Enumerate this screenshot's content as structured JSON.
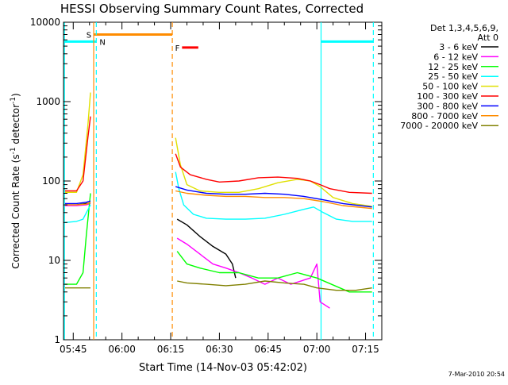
{
  "chart_data": {
    "type": "line",
    "title": "HESSI Observing Summary Count Rates, Corrected",
    "xlabel": "Start Time (14-Nov-03 05:42:02)",
    "ylabel_main": "Corrected Count Rate (s",
    "ylabel_sup1": "-1",
    "ylabel_mid": " detector",
    "ylabel_sup2": "-1",
    "ylabel_end": ")",
    "ylim": [
      1,
      10000
    ],
    "yscale": "log",
    "xlim_minutes": [
      342,
      440
    ],
    "x_ticks": [
      "05:45",
      "06:00",
      "06:15",
      "06:30",
      "06:45",
      "07:00",
      "07:15"
    ],
    "x_tick_minutes": [
      345,
      360,
      375,
      390,
      405,
      420,
      435
    ],
    "y_ticks": [
      "1",
      "10",
      "100",
      "1000",
      "10000"
    ],
    "y_tick_values": [
      1,
      10,
      100,
      1000,
      10000
    ],
    "legend_header": [
      "Det 1,3,4,5,6,9,",
      "Att 0"
    ],
    "legend_position": "right",
    "date_stamp": "7-Mar-2010 20:54",
    "colors": {
      "3-6": "#000000",
      "6-12": "#ff00ff",
      "12-25": "#00ff00",
      "25-50": "#00ffff",
      "50-100": "#e0e000",
      "100-300": "#ff0000",
      "300-800": "#0000ff",
      "800-7000": "#ff8c00",
      "7000-20000": "#808000",
      "night": "#00ffff",
      "saa": "#ff8c00",
      "flare": "#ff0000",
      "axis": "#000000"
    },
    "series": [
      {
        "key": "3-6",
        "name": "3 - 6 keV",
        "segments": [
          [
            [
              342.5,
              50
            ],
            [
              346,
              50
            ],
            [
              349,
              52
            ],
            [
              350.3,
              53
            ]
          ],
          [
            [
              377,
              33
            ],
            [
              380,
              28
            ],
            [
              384,
              20
            ],
            [
              388,
              15
            ],
            [
              392,
              12
            ],
            [
              394,
              9
            ],
            [
              395,
              6
            ]
          ]
        ]
      },
      {
        "key": "6-12",
        "name": "6 - 12 keV",
        "segments": [
          [
            [
              342.5,
              49
            ],
            [
              346,
              49
            ],
            [
              349,
              50
            ],
            [
              350.3,
              52
            ]
          ],
          [
            [
              377,
              19
            ],
            [
              380,
              16
            ],
            [
              384,
              12
            ],
            [
              388,
              9
            ],
            [
              392,
              8
            ],
            [
              396,
              7
            ],
            [
              400,
              6
            ],
            [
              404,
              5
            ],
            [
              408,
              6
            ],
            [
              412,
              5
            ],
            [
              418,
              6
            ],
            [
              420,
              9
            ],
            [
              421,
              3
            ],
            [
              424,
              2.5
            ]
          ]
        ]
      },
      {
        "key": "12-25",
        "name": "12 - 25 keV",
        "segments": [
          [
            [
              342.5,
              5
            ],
            [
              346,
              5
            ],
            [
              348,
              7
            ],
            [
              349,
              20
            ],
            [
              350.3,
              70
            ]
          ],
          [
            [
              377,
              13
            ],
            [
              380,
              9
            ],
            [
              384,
              8
            ],
            [
              390,
              7
            ],
            [
              396,
              7
            ],
            [
              402,
              6
            ],
            [
              408,
              6
            ],
            [
              414,
              7
            ],
            [
              420,
              6
            ],
            [
              430,
              4
            ],
            [
              437,
              4
            ]
          ]
        ]
      },
      {
        "key": "25-50",
        "name": "25 - 50 keV",
        "segments": [
          [
            [
              342.5,
              30
            ],
            [
              346,
              31
            ],
            [
              348,
              33
            ],
            [
              350.3,
              50
            ]
          ],
          [
            [
              376.5,
              130
            ],
            [
              377.5,
              80
            ],
            [
              379,
              50
            ],
            [
              382,
              38
            ],
            [
              386,
              34
            ],
            [
              392,
              33
            ],
            [
              398,
              33
            ],
            [
              404,
              34
            ],
            [
              410,
              38
            ],
            [
              416,
              44
            ],
            [
              419,
              47
            ],
            [
              422,
              40
            ],
            [
              426,
              33
            ],
            [
              431,
              31
            ],
            [
              437,
              31
            ]
          ]
        ]
      },
      {
        "key": "50-100",
        "name": "50 - 100 keV",
        "segments": [
          [
            [
              342.5,
              72
            ],
            [
              346,
              72
            ],
            [
              348,
              120
            ],
            [
              349.5,
              500
            ],
            [
              350.3,
              1300
            ]
          ],
          [
            [
              376.5,
              350
            ],
            [
              378,
              160
            ],
            [
              380,
              90
            ],
            [
              384,
              75
            ],
            [
              390,
              72
            ],
            [
              396,
              72
            ],
            [
              402,
              80
            ],
            [
              408,
              95
            ],
            [
              414,
              105
            ],
            [
              418,
              100
            ],
            [
              421,
              85
            ],
            [
              425,
              62
            ],
            [
              431,
              52
            ],
            [
              437,
              48
            ]
          ]
        ]
      },
      {
        "key": "100-300",
        "name": "100 - 300 keV",
        "segments": [
          [
            [
              342.5,
              75
            ],
            [
              346,
              75
            ],
            [
              348,
              100
            ],
            [
              349.5,
              350
            ],
            [
              350.3,
              650
            ]
          ],
          [
            [
              376.5,
              220
            ],
            [
              378,
              150
            ],
            [
              381,
              120
            ],
            [
              386,
              105
            ],
            [
              390,
              97
            ],
            [
              396,
              100
            ],
            [
              402,
              110
            ],
            [
              408,
              112
            ],
            [
              414,
              108
            ],
            [
              418,
              100
            ],
            [
              421,
              90
            ],
            [
              424,
              80
            ],
            [
              430,
              72
            ],
            [
              437,
              70
            ]
          ]
        ]
      },
      {
        "key": "300-800",
        "name": "300 - 800 keV",
        "segments": [
          [
            [
              342.5,
              52
            ],
            [
              346,
              52
            ],
            [
              349,
              54
            ],
            [
              350.3,
              56
            ]
          ],
          [
            [
              376.5,
              85
            ],
            [
              380,
              77
            ],
            [
              386,
              70
            ],
            [
              392,
              68
            ],
            [
              398,
              68
            ],
            [
              404,
              70
            ],
            [
              410,
              68
            ],
            [
              416,
              64
            ],
            [
              422,
              58
            ],
            [
              428,
              52
            ],
            [
              437,
              47
            ]
          ]
        ]
      },
      {
        "key": "800-7000",
        "name": "800 - 7000 keV",
        "segments": [
          [
            [
              342.5,
              50
            ],
            [
              346,
              50
            ],
            [
              349,
              51
            ],
            [
              350.3,
              54
            ]
          ],
          [
            [
              376.5,
              75
            ],
            [
              380,
              70
            ],
            [
              386,
              66
            ],
            [
              392,
              64
            ],
            [
              398,
              64
            ],
            [
              404,
              62
            ],
            [
              410,
              62
            ],
            [
              416,
              60
            ],
            [
              422,
              55
            ],
            [
              428,
              49
            ],
            [
              437,
              45
            ]
          ]
        ]
      },
      {
        "key": "7000-20000",
        "name": "7000 - 20000 keV",
        "segments": [
          [
            [
              342.5,
              4.5
            ],
            [
              350.3,
              4.5
            ]
          ],
          [
            [
              377,
              5.5
            ],
            [
              380,
              5.2
            ],
            [
              386,
              5
            ],
            [
              392,
              4.8
            ],
            [
              398,
              5
            ],
            [
              404,
              5.5
            ],
            [
              410,
              5.2
            ],
            [
              416,
              5
            ],
            [
              420,
              4.5
            ],
            [
              426,
              4.2
            ],
            [
              432,
              4.2
            ],
            [
              437,
              4.5
            ]
          ]
        ]
      }
    ],
    "night_bars": [
      [
        342.3,
        352.1
      ],
      [
        421.3,
        437.4
      ]
    ],
    "saa_bar": [
      351.3,
      375.5
    ],
    "flare_bar": [
      378.5,
      383.5
    ],
    "night_lines_solid": [
      342.3,
      421.3
    ],
    "night_lines_dashed": [
      352.1,
      437.4
    ],
    "saa_line_solid": 351.3,
    "saa_line_dashed": 375.5,
    "flag_labels": {
      "saa": "S",
      "night": "N",
      "flare": "F"
    }
  }
}
